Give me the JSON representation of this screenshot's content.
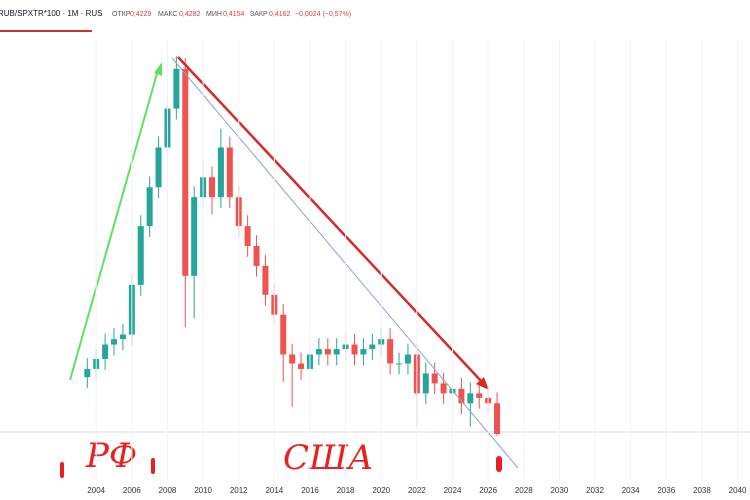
{
  "chart_data": {
    "type": "candlestick",
    "title": "RUB/SPXTR*100 · 1M · RUS",
    "header": {
      "open_label": "ОТКР",
      "open": "0,4229",
      "high_label": "МАКС",
      "high": "0,4282",
      "low_label": "МИН",
      "low": "0,4154",
      "close_label": "ЗАКР",
      "close": "0,4162",
      "change": "−0,0024 (−0,57%)"
    },
    "annotations": [
      "РФ",
      "США"
    ],
    "up_color": "#26a69a",
    "down_color": "#ef5350",
    "x": [
      2003.5,
      2004,
      2004.5,
      2005,
      2005.5,
      2006,
      2006.5,
      2007,
      2007.5,
      2008,
      2008.5,
      2009,
      2009.5,
      2010,
      2010.5,
      2011,
      2011.5,
      2012,
      2012.5,
      2013,
      2013.5,
      2014,
      2014.5,
      2015,
      2015.5,
      2016,
      2016.5,
      2017,
      2017.5,
      2018,
      2018.5,
      2019,
      2019.5,
      2020,
      2020.5,
      2021,
      2021.5,
      2022,
      2022.5,
      2023,
      2023.5,
      2024,
      2024.5,
      2025,
      2025.5,
      2026,
      2026.5
    ],
    "open": [
      1.05,
      1.14,
      1.25,
      1.41,
      1.47,
      1.52,
      2.07,
      2.72,
      3.15,
      3.59,
      4.02,
      4.46,
      2.17,
      3.04,
      3.26,
      3.04,
      3.59,
      3.04,
      2.72,
      2.5,
      2.28,
      1.96,
      1.74,
      1.3,
      1.2,
      1.14,
      1.3,
      1.36,
      1.3,
      1.36,
      1.41,
      1.3,
      1.36,
      1.41,
      1.47,
      1.2,
      1.2,
      1.3,
      0.87,
      1.09,
      0.98,
      0.87,
      0.92,
      0.76,
      0.87,
      0.82,
      0.76
    ],
    "high": [
      1.26,
      1.37,
      1.53,
      1.59,
      1.64,
      2.19,
      2.84,
      3.27,
      3.71,
      4.14,
      4.6,
      4.58,
      3.16,
      3.45,
      3.38,
      3.8,
      3.71,
      3.16,
      2.84,
      2.62,
      2.4,
      2.08,
      1.86,
      1.42,
      1.32,
      1.42,
      1.48,
      1.48,
      1.48,
      1.53,
      1.53,
      1.48,
      1.53,
      1.59,
      1.59,
      1.32,
      1.42,
      1.42,
      1.21,
      1.21,
      1.1,
      1.04,
      1.04,
      0.99,
      0.99,
      0.94,
      0.88
    ],
    "low": [
      0.93,
      1.02,
      1.13,
      1.29,
      1.35,
      1.4,
      1.95,
      2.6,
      3.03,
      3.47,
      3.9,
      1.6,
      1.7,
      2.92,
      2.85,
      2.92,
      2.92,
      2.6,
      2.38,
      2.16,
      1.84,
      1.62,
      1.0,
      0.72,
      1.02,
      1.02,
      1.18,
      1.18,
      1.18,
      1.24,
      1.18,
      1.18,
      1.24,
      1.29,
      1.08,
      1.08,
      1.08,
      0.5,
      0.75,
      0.86,
      0.75,
      0.75,
      0.64,
      0.5,
      0.7,
      0.64,
      0.4
    ],
    "close": [
      1.14,
      1.25,
      1.41,
      1.47,
      1.52,
      2.07,
      2.72,
      3.15,
      3.59,
      4.02,
      4.46,
      2.17,
      3.04,
      3.26,
      3.04,
      3.59,
      3.04,
      2.72,
      2.5,
      2.28,
      1.96,
      1.74,
      1.3,
      1.2,
      1.14,
      1.3,
      1.36,
      1.3,
      1.36,
      1.41,
      1.3,
      1.36,
      1.41,
      1.47,
      1.2,
      1.2,
      1.3,
      0.87,
      1.09,
      0.98,
      0.87,
      0.92,
      0.76,
      0.87,
      0.82,
      0.76,
      0.42
    ],
    "xlim": [
      1998.6,
      2040.7
    ],
    "ylim": [
      0,
      5
    ],
    "xticks": [
      2004,
      2006,
      2008,
      2010,
      2012,
      2014,
      2016,
      2018,
      2020,
      2022,
      2024,
      2026,
      2028,
      2030,
      2032,
      2034,
      2036,
      2038,
      2040
    ]
  }
}
